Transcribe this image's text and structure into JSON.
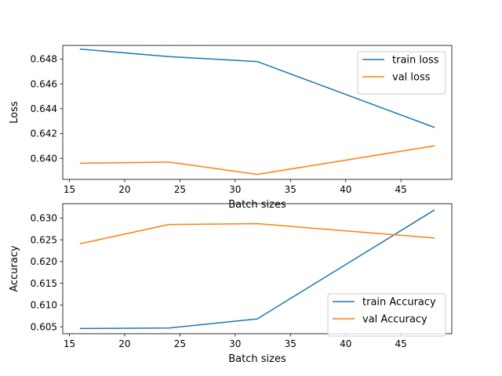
{
  "chart_data": [
    {
      "type": "line",
      "title": "",
      "xlabel": "Batch sizes",
      "ylabel": "Loss",
      "x": [
        16,
        24,
        32,
        48
      ],
      "xlim": [
        14.4,
        49.6
      ],
      "ylim": [
        0.6383,
        0.6491
      ],
      "xticks": [
        15,
        20,
        25,
        30,
        35,
        40,
        45
      ],
      "yticks": [
        0.64,
        0.642,
        0.644,
        0.646,
        0.648
      ],
      "ytick_labels": [
        "0.640",
        "0.642",
        "0.644",
        "0.646",
        "0.648"
      ],
      "grid": false,
      "legend_position": "top-right",
      "series": [
        {
          "name": "train loss",
          "color": "#1f77b4",
          "values": [
            0.6488,
            0.6482,
            0.6478,
            0.6425
          ]
        },
        {
          "name": "val loss",
          "color": "#ff7f0e",
          "values": [
            0.6396,
            0.6397,
            0.6387,
            0.641
          ]
        }
      ]
    },
    {
      "type": "line",
      "title": "",
      "xlabel": "Batch sizes",
      "ylabel": "Accuracy",
      "x": [
        16,
        24,
        32,
        48
      ],
      "xlim": [
        14.4,
        49.6
      ],
      "ylim": [
        0.6034,
        0.6333
      ],
      "xticks": [
        15,
        20,
        25,
        30,
        35,
        40,
        45
      ],
      "yticks": [
        0.605,
        0.61,
        0.615,
        0.62,
        0.625,
        0.63
      ],
      "ytick_labels": [
        "0.605",
        "0.610",
        "0.615",
        "0.620",
        "0.625",
        "0.630"
      ],
      "grid": false,
      "legend_position": "bottom-right",
      "series": [
        {
          "name": "train Accuracy",
          "color": "#1f77b4",
          "values": [
            0.6046,
            0.6047,
            0.6068,
            0.6318
          ]
        },
        {
          "name": "val Accuracy",
          "color": "#ff7f0e",
          "values": [
            0.6241,
            0.6285,
            0.6287,
            0.6254
          ]
        }
      ]
    }
  ]
}
